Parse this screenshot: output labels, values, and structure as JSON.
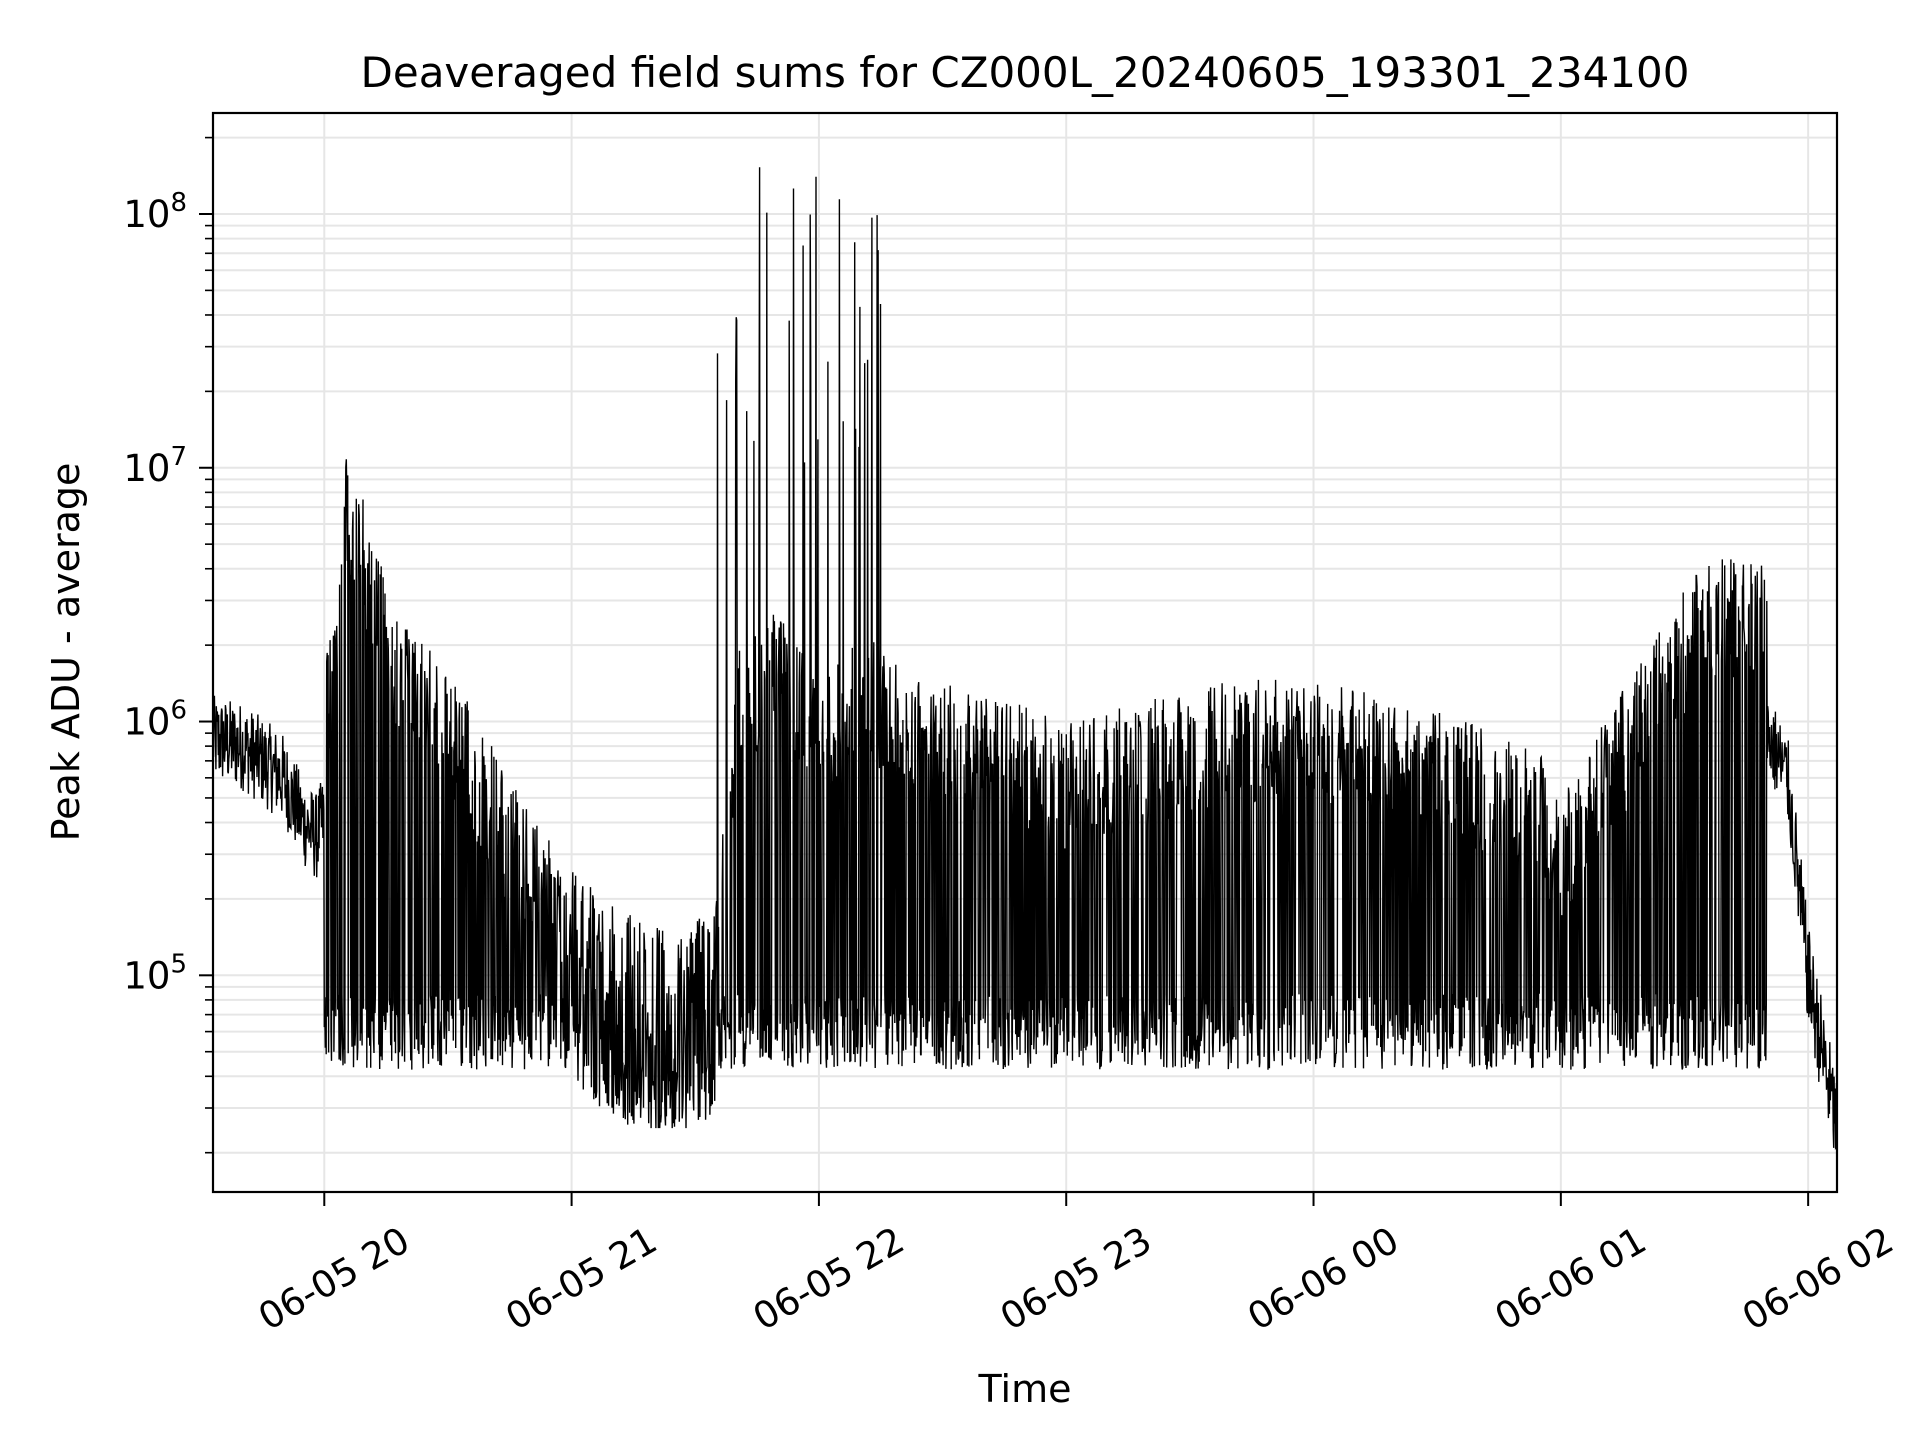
{
  "chart_data": {
    "type": "line",
    "title": "Deaveraged field sums for CZ000L_20240605_193301_234100",
    "xlabel": "Time",
    "ylabel": "Peak ADU - average",
    "yscale": "log",
    "grid": true,
    "line_color": "#000000",
    "grid_color": "#e6e6e6",
    "xlim": [
      "06-05 19:33",
      "06-06 02:07"
    ],
    "ylim": [
      14000,
      250000000
    ],
    "x_ticks": [
      "06-05 20",
      "06-05 21",
      "06-05 22",
      "06-05 23",
      "06-06 00",
      "06-06 01",
      "06-06 02"
    ],
    "y_ticks": [
      {
        "base": "10",
        "exp": "5",
        "value": 100000
      },
      {
        "base": "10",
        "exp": "6",
        "value": 1000000
      },
      {
        "base": "10",
        "exp": "7",
        "value": 10000000
      },
      {
        "base": "10",
        "exp": "8",
        "value": 100000000
      }
    ],
    "series": [
      {
        "x": [
          "06-05 19:33",
          "06-05 19:40",
          "06-05 19:50",
          "06-05 19:55",
          "06-05 19:58",
          "06-05 20:02",
          "06-05 20:05",
          "06-05 20:10",
          "06-05 20:15",
          "06-05 20:25",
          "06-05 20:35",
          "06-05 20:45",
          "06-05 20:55",
          "06-05 21:05",
          "06-05 21:15",
          "06-05 21:25",
          "06-05 21:35",
          "06-05 21:40",
          "06-05 21:50",
          "06-05 21:55",
          "06-05 22:00",
          "06-05 22:10",
          "06-05 22:15",
          "06-05 22:25",
          "06-05 22:45",
          "06-05 23:00",
          "06-05 23:20",
          "06-05 23:40",
          "06-06 00:00",
          "06-06 00:20",
          "06-06 00:40",
          "06-06 00:55",
          "06-06 01:00",
          "06-06 01:10",
          "06-06 01:25",
          "06-06 01:35",
          "06-06 01:50",
          "06-06 01:55",
          "06-06 02:00",
          "06-06 02:07"
        ],
        "y": [
          850000,
          800000,
          600000,
          400000,
          350000,
          500000,
          2500000,
          1500000,
          700000,
          400000,
          250000,
          120000,
          70000,
          45000,
          35000,
          30000,
          40000,
          400000,
          600000,
          400000,
          300000,
          500000,
          400000,
          300000,
          250000,
          200000,
          250000,
          300000,
          300000,
          250000,
          200000,
          150000,
          100000,
          200000,
          500000,
          900000,
          900000,
          600000,
          100000,
          25000
        ]
      }
    ],
    "spike_window": [
      "06-05 21:35",
      "06-05 22:16"
    ],
    "spike_peak": 160000000
  }
}
